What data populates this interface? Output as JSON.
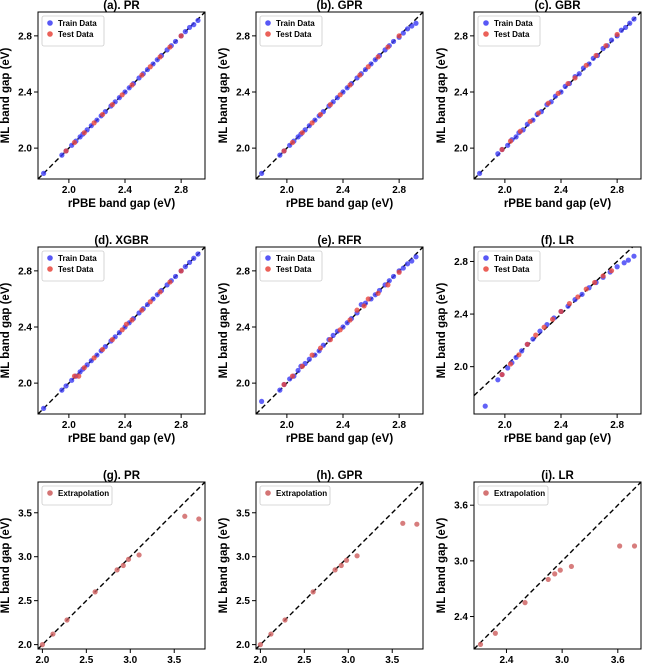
{
  "chart_data": [
    {
      "type": "scatter",
      "title": "(a). PR",
      "xlabel": "rPBE band gap (eV)",
      "ylabel": "ML band gap (eV)",
      "xlim": [
        1.78,
        2.97
      ],
      "ylim": [
        1.78,
        2.97
      ],
      "xticks": [
        2.0,
        2.4,
        2.8
      ],
      "yticks": [
        2.0,
        2.4,
        2.8
      ],
      "legend": [
        "Train Data",
        "Test Data"
      ],
      "legend_position": "top-left",
      "reference_line": "y = x",
      "series": [
        {
          "name": "Train Data",
          "color": "#3b3bf5",
          "x": [
            1.82,
            1.95,
            1.98,
            2.02,
            2.05,
            2.08,
            2.1,
            2.13,
            2.16,
            2.2,
            2.23,
            2.26,
            2.3,
            2.33,
            2.36,
            2.4,
            2.43,
            2.46,
            2.5,
            2.53,
            2.56,
            2.6,
            2.63,
            2.66,
            2.7,
            2.73,
            2.76,
            2.8,
            2.83,
            2.86,
            2.89,
            2.92
          ],
          "y": [
            1.82,
            1.95,
            1.98,
            2.02,
            2.05,
            2.08,
            2.1,
            2.13,
            2.16,
            2.2,
            2.23,
            2.26,
            2.3,
            2.33,
            2.36,
            2.4,
            2.43,
            2.46,
            2.5,
            2.53,
            2.56,
            2.6,
            2.63,
            2.66,
            2.7,
            2.73,
            2.76,
            2.8,
            2.83,
            2.86,
            2.88,
            2.91
          ]
        },
        {
          "name": "Test Data",
          "color": "#e8453c",
          "x": [
            1.98,
            2.04,
            2.11,
            2.18,
            2.24,
            2.31,
            2.38,
            2.45,
            2.52,
            2.58,
            2.65,
            2.72,
            2.8
          ],
          "y": [
            1.98,
            2.04,
            2.11,
            2.18,
            2.24,
            2.31,
            2.38,
            2.45,
            2.52,
            2.58,
            2.65,
            2.72,
            2.8
          ]
        }
      ]
    },
    {
      "type": "scatter",
      "title": "(b). GPR",
      "xlabel": "rPBE band gap (eV)",
      "ylabel": "ML band gap (eV)",
      "xlim": [
        1.78,
        2.97
      ],
      "ylim": [
        1.78,
        2.97
      ],
      "xticks": [
        2.0,
        2.4,
        2.8
      ],
      "yticks": [
        2.0,
        2.4,
        2.8
      ],
      "legend": [
        "Train Data",
        "Test Data"
      ],
      "legend_position": "top-left",
      "reference_line": "y = x",
      "series": [
        {
          "name": "Train Data",
          "color": "#3b3bf5",
          "x": [
            1.82,
            1.95,
            1.98,
            2.02,
            2.05,
            2.08,
            2.1,
            2.13,
            2.16,
            2.2,
            2.23,
            2.26,
            2.3,
            2.33,
            2.36,
            2.4,
            2.43,
            2.46,
            2.5,
            2.53,
            2.56,
            2.6,
            2.63,
            2.66,
            2.7,
            2.73,
            2.76,
            2.8,
            2.83,
            2.86,
            2.89,
            2.92
          ],
          "y": [
            1.82,
            1.95,
            1.98,
            2.02,
            2.05,
            2.08,
            2.1,
            2.13,
            2.16,
            2.2,
            2.23,
            2.26,
            2.3,
            2.33,
            2.36,
            2.4,
            2.43,
            2.46,
            2.5,
            2.53,
            2.56,
            2.6,
            2.63,
            2.66,
            2.7,
            2.73,
            2.76,
            2.79,
            2.82,
            2.85,
            2.87,
            2.89
          ]
        },
        {
          "name": "Test Data",
          "color": "#e8453c",
          "x": [
            1.98,
            2.04,
            2.11,
            2.18,
            2.24,
            2.31,
            2.38,
            2.45,
            2.52,
            2.58,
            2.65,
            2.72,
            2.8
          ],
          "y": [
            1.98,
            2.04,
            2.11,
            2.18,
            2.24,
            2.31,
            2.38,
            2.45,
            2.52,
            2.58,
            2.65,
            2.72,
            2.8
          ]
        }
      ]
    },
    {
      "type": "scatter",
      "title": "(c). GBR",
      "xlabel": "rPBE band gap (eV)",
      "ylabel": "ML band gap (eV)",
      "xlim": [
        1.78,
        2.97
      ],
      "ylim": [
        1.78,
        2.97
      ],
      "xticks": [
        2.0,
        2.4,
        2.8
      ],
      "yticks": [
        2.0,
        2.4,
        2.8
      ],
      "legend": [
        "Train Data",
        "Test Data"
      ],
      "legend_position": "top-left",
      "reference_line": "y = x",
      "series": [
        {
          "name": "Train Data",
          "color": "#3b3bf5",
          "x": [
            1.82,
            1.95,
            1.98,
            2.02,
            2.05,
            2.08,
            2.1,
            2.13,
            2.16,
            2.2,
            2.23,
            2.26,
            2.3,
            2.33,
            2.36,
            2.4,
            2.43,
            2.46,
            2.5,
            2.53,
            2.56,
            2.6,
            2.63,
            2.66,
            2.7,
            2.73,
            2.76,
            2.8,
            2.83,
            2.86,
            2.89,
            2.92
          ],
          "y": [
            1.82,
            1.96,
            1.99,
            2.02,
            2.06,
            2.08,
            2.11,
            2.13,
            2.17,
            2.2,
            2.24,
            2.26,
            2.31,
            2.33,
            2.37,
            2.4,
            2.44,
            2.46,
            2.51,
            2.53,
            2.57,
            2.6,
            2.64,
            2.66,
            2.71,
            2.73,
            2.77,
            2.8,
            2.84,
            2.86,
            2.89,
            2.92
          ]
        },
        {
          "name": "Test Data",
          "color": "#e8453c",
          "x": [
            1.98,
            2.04,
            2.11,
            2.18,
            2.24,
            2.31,
            2.38,
            2.45,
            2.5,
            2.58,
            2.65,
            2.72,
            2.8
          ],
          "y": [
            1.99,
            2.05,
            2.12,
            2.19,
            2.25,
            2.32,
            2.39,
            2.46,
            2.5,
            2.59,
            2.66,
            2.73,
            2.81
          ]
        }
      ]
    },
    {
      "type": "scatter",
      "title": "(d). XGBR",
      "xlabel": "rPBE band gap (eV)",
      "ylabel": "ML band gap (eV)",
      "xlim": [
        1.78,
        2.97
      ],
      "ylim": [
        1.78,
        2.97
      ],
      "xticks": [
        2.0,
        2.4,
        2.8
      ],
      "yticks": [
        2.0,
        2.4,
        2.8
      ],
      "legend": [
        "Train Data",
        "Test Data"
      ],
      "legend_position": "top-left",
      "reference_line": "y = x",
      "series": [
        {
          "name": "Train Data",
          "color": "#3b3bf5",
          "x": [
            1.82,
            1.95,
            1.98,
            2.02,
            2.05,
            2.08,
            2.1,
            2.13,
            2.16,
            2.2,
            2.23,
            2.26,
            2.3,
            2.33,
            2.36,
            2.4,
            2.43,
            2.46,
            2.5,
            2.53,
            2.56,
            2.6,
            2.63,
            2.66,
            2.7,
            2.73,
            2.76,
            2.8,
            2.83,
            2.86,
            2.89,
            2.92
          ],
          "y": [
            1.82,
            1.95,
            1.98,
            2.02,
            2.05,
            2.08,
            2.1,
            2.13,
            2.16,
            2.2,
            2.23,
            2.26,
            2.3,
            2.33,
            2.36,
            2.4,
            2.43,
            2.46,
            2.5,
            2.53,
            2.56,
            2.6,
            2.63,
            2.66,
            2.7,
            2.73,
            2.76,
            2.8,
            2.83,
            2.86,
            2.89,
            2.92
          ]
        },
        {
          "name": "Test Data",
          "color": "#e8453c",
          "x": [
            2.04,
            2.07,
            2.11,
            2.18,
            2.24,
            2.31,
            2.38,
            2.41,
            2.45,
            2.52,
            2.58,
            2.65,
            2.72,
            2.8
          ],
          "y": [
            2.05,
            2.05,
            2.11,
            2.18,
            2.24,
            2.31,
            2.38,
            2.42,
            2.45,
            2.52,
            2.58,
            2.65,
            2.72,
            2.8
          ]
        }
      ]
    },
    {
      "type": "scatter",
      "title": "(e). RFR",
      "xlabel": "rPBE band gap (eV)",
      "ylabel": "ML band gap (eV)",
      "xlim": [
        1.78,
        2.97
      ],
      "ylim": [
        1.78,
        2.97
      ],
      "xticks": [
        2.0,
        2.4,
        2.8
      ],
      "yticks": [
        2.0,
        2.4,
        2.8
      ],
      "legend": [
        "Train Data",
        "Test Data"
      ],
      "legend_position": "top-left",
      "reference_line": "y = x",
      "series": [
        {
          "name": "Train Data",
          "color": "#3b3bf5",
          "x": [
            1.82,
            1.95,
            1.98,
            2.02,
            2.05,
            2.08,
            2.1,
            2.13,
            2.16,
            2.2,
            2.23,
            2.26,
            2.3,
            2.33,
            2.36,
            2.4,
            2.43,
            2.46,
            2.5,
            2.53,
            2.56,
            2.6,
            2.63,
            2.66,
            2.7,
            2.73,
            2.76,
            2.8,
            2.83,
            2.86,
            2.89,
            2.92
          ],
          "y": [
            1.87,
            1.95,
            1.99,
            2.03,
            2.05,
            2.09,
            2.12,
            2.14,
            2.17,
            2.2,
            2.23,
            2.27,
            2.31,
            2.34,
            2.37,
            2.4,
            2.43,
            2.46,
            2.5,
            2.56,
            2.57,
            2.6,
            2.63,
            2.66,
            2.7,
            2.73,
            2.76,
            2.8,
            2.82,
            2.85,
            2.87,
            2.9
          ]
        },
        {
          "name": "Test Data",
          "color": "#e8453c",
          "x": [
            1.98,
            2.04,
            2.11,
            2.18,
            2.24,
            2.31,
            2.38,
            2.45,
            2.5,
            2.55,
            2.58,
            2.65,
            2.72,
            2.8
          ],
          "y": [
            1.99,
            2.05,
            2.12,
            2.2,
            2.25,
            2.31,
            2.38,
            2.45,
            2.52,
            2.55,
            2.6,
            2.64,
            2.7,
            2.79
          ]
        }
      ]
    },
    {
      "type": "scatter",
      "title": "(f). LR",
      "xlabel": "rPBE band gap (eV)",
      "ylabel": "ML band gap (eV)",
      "xlim": [
        1.78,
        2.97
      ],
      "ylim": [
        1.64,
        2.91
      ],
      "xticks": [
        2.0,
        2.4,
        2.8
      ],
      "yticks": [
        2.0,
        2.4,
        2.8
      ],
      "legend": [
        "Train Data",
        "Test Data"
      ],
      "legend_position": "top-left",
      "reference_line": "y = x",
      "series": [
        {
          "name": "Train Data",
          "color": "#3b3bf5",
          "x": [
            1.86,
            1.95,
            1.98,
            2.02,
            2.05,
            2.08,
            2.12,
            2.16,
            2.2,
            2.25,
            2.3,
            2.35,
            2.4,
            2.45,
            2.5,
            2.55,
            2.6,
            2.65,
            2.7,
            2.75,
            2.8,
            2.85,
            2.88,
            2.92
          ],
          "y": [
            1.7,
            1.9,
            1.94,
            1.99,
            2.03,
            2.07,
            2.12,
            2.17,
            2.21,
            2.27,
            2.32,
            2.37,
            2.42,
            2.46,
            2.51,
            2.55,
            2.6,
            2.64,
            2.68,
            2.72,
            2.76,
            2.79,
            2.81,
            2.84
          ]
        },
        {
          "name": "Test Data",
          "color": "#e8453c",
          "x": [
            1.98,
            2.04,
            2.1,
            2.16,
            2.22,
            2.28,
            2.34,
            2.4,
            2.46,
            2.52,
            2.58,
            2.64,
            2.7,
            2.76
          ],
          "y": [
            1.94,
            2.02,
            2.09,
            2.17,
            2.24,
            2.3,
            2.36,
            2.42,
            2.48,
            2.53,
            2.59,
            2.64,
            2.69,
            2.73
          ]
        }
      ]
    },
    {
      "type": "scatter",
      "title": "(g). PR",
      "xlabel": "rPBE band gap (eV)",
      "ylabel": "ML band gap (eV)",
      "xlim": [
        1.95,
        3.85
      ],
      "ylim": [
        1.95,
        3.85
      ],
      "xticks": [
        2.0,
        2.5,
        3.0,
        3.5
      ],
      "yticks": [
        2.0,
        2.5,
        3.0,
        3.5
      ],
      "legend": [
        "Extrapolation"
      ],
      "legend_position": "top-left",
      "reference_line": "y = x",
      "series": [
        {
          "name": "Extrapolation",
          "color": "#cd5c5c",
          "x": [
            2.0,
            2.12,
            2.28,
            2.6,
            2.85,
            2.92,
            2.98,
            3.1,
            3.62,
            3.78
          ],
          "y": [
            2.0,
            2.12,
            2.28,
            2.6,
            2.85,
            2.9,
            2.97,
            3.02,
            3.46,
            3.43
          ]
        }
      ]
    },
    {
      "type": "scatter",
      "title": "(h). GPR",
      "xlabel": "rPBE band gap (eV)",
      "ylabel": "ML band gap (eV)",
      "xlim": [
        1.95,
        3.85
      ],
      "ylim": [
        1.95,
        3.85
      ],
      "xticks": [
        2.0,
        2.5,
        3.0,
        3.5
      ],
      "yticks": [
        2.0,
        2.5,
        3.0,
        3.5
      ],
      "legend": [
        "Extrapolation"
      ],
      "legend_position": "top-left",
      "reference_line": "y = x",
      "series": [
        {
          "name": "Extrapolation",
          "color": "#cd5c5c",
          "x": [
            2.0,
            2.12,
            2.28,
            2.6,
            2.85,
            2.92,
            2.98,
            3.1,
            3.62,
            3.78
          ],
          "y": [
            2.0,
            2.12,
            2.28,
            2.6,
            2.85,
            2.9,
            2.96,
            3.01,
            3.38,
            3.37
          ]
        }
      ]
    },
    {
      "type": "scatter",
      "title": "(i). LR",
      "xlabel": "rPBE band gap (eV)",
      "ylabel": "ML band gap (eV)",
      "xlim": [
        2.05,
        3.85
      ],
      "ylim": [
        2.05,
        3.85
      ],
      "xticks": [
        2.4,
        3.0,
        3.6
      ],
      "yticks": [
        2.4,
        3.0,
        3.6
      ],
      "legend": [
        "Extrapolation"
      ],
      "legend_position": "top-left",
      "reference_line": "y = x",
      "series": [
        {
          "name": "Extrapolation",
          "color": "#cd5c5c",
          "x": [
            2.12,
            2.28,
            2.6,
            2.85,
            2.92,
            2.98,
            3.1,
            3.62,
            3.78
          ],
          "y": [
            2.1,
            2.22,
            2.55,
            2.8,
            2.86,
            2.9,
            2.94,
            3.16,
            3.16
          ]
        }
      ]
    }
  ]
}
